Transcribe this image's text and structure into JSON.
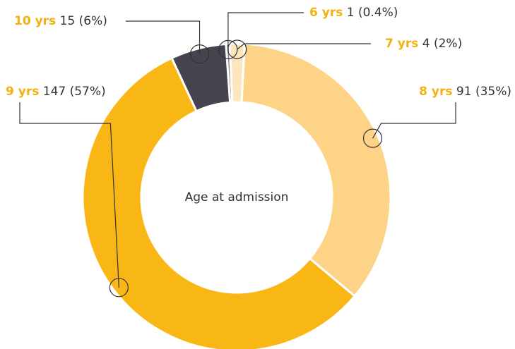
{
  "chart_data": {
    "type": "donut",
    "center_label": "Age at admission",
    "categories": [
      "6 yrs",
      "7 yrs",
      "8 yrs",
      "9 yrs",
      "10 yrs"
    ],
    "values": [
      1,
      4,
      91,
      147,
      15
    ],
    "value_labels": [
      "1 (0.4%)",
      "4 (2%)",
      "91 (35%)",
      "147 (57%)",
      "15 (6%)"
    ],
    "colors": [
      "#8a8790",
      "#fde5bd",
      "#fdd487",
      "#f9b716",
      "#45434d"
    ]
  }
}
